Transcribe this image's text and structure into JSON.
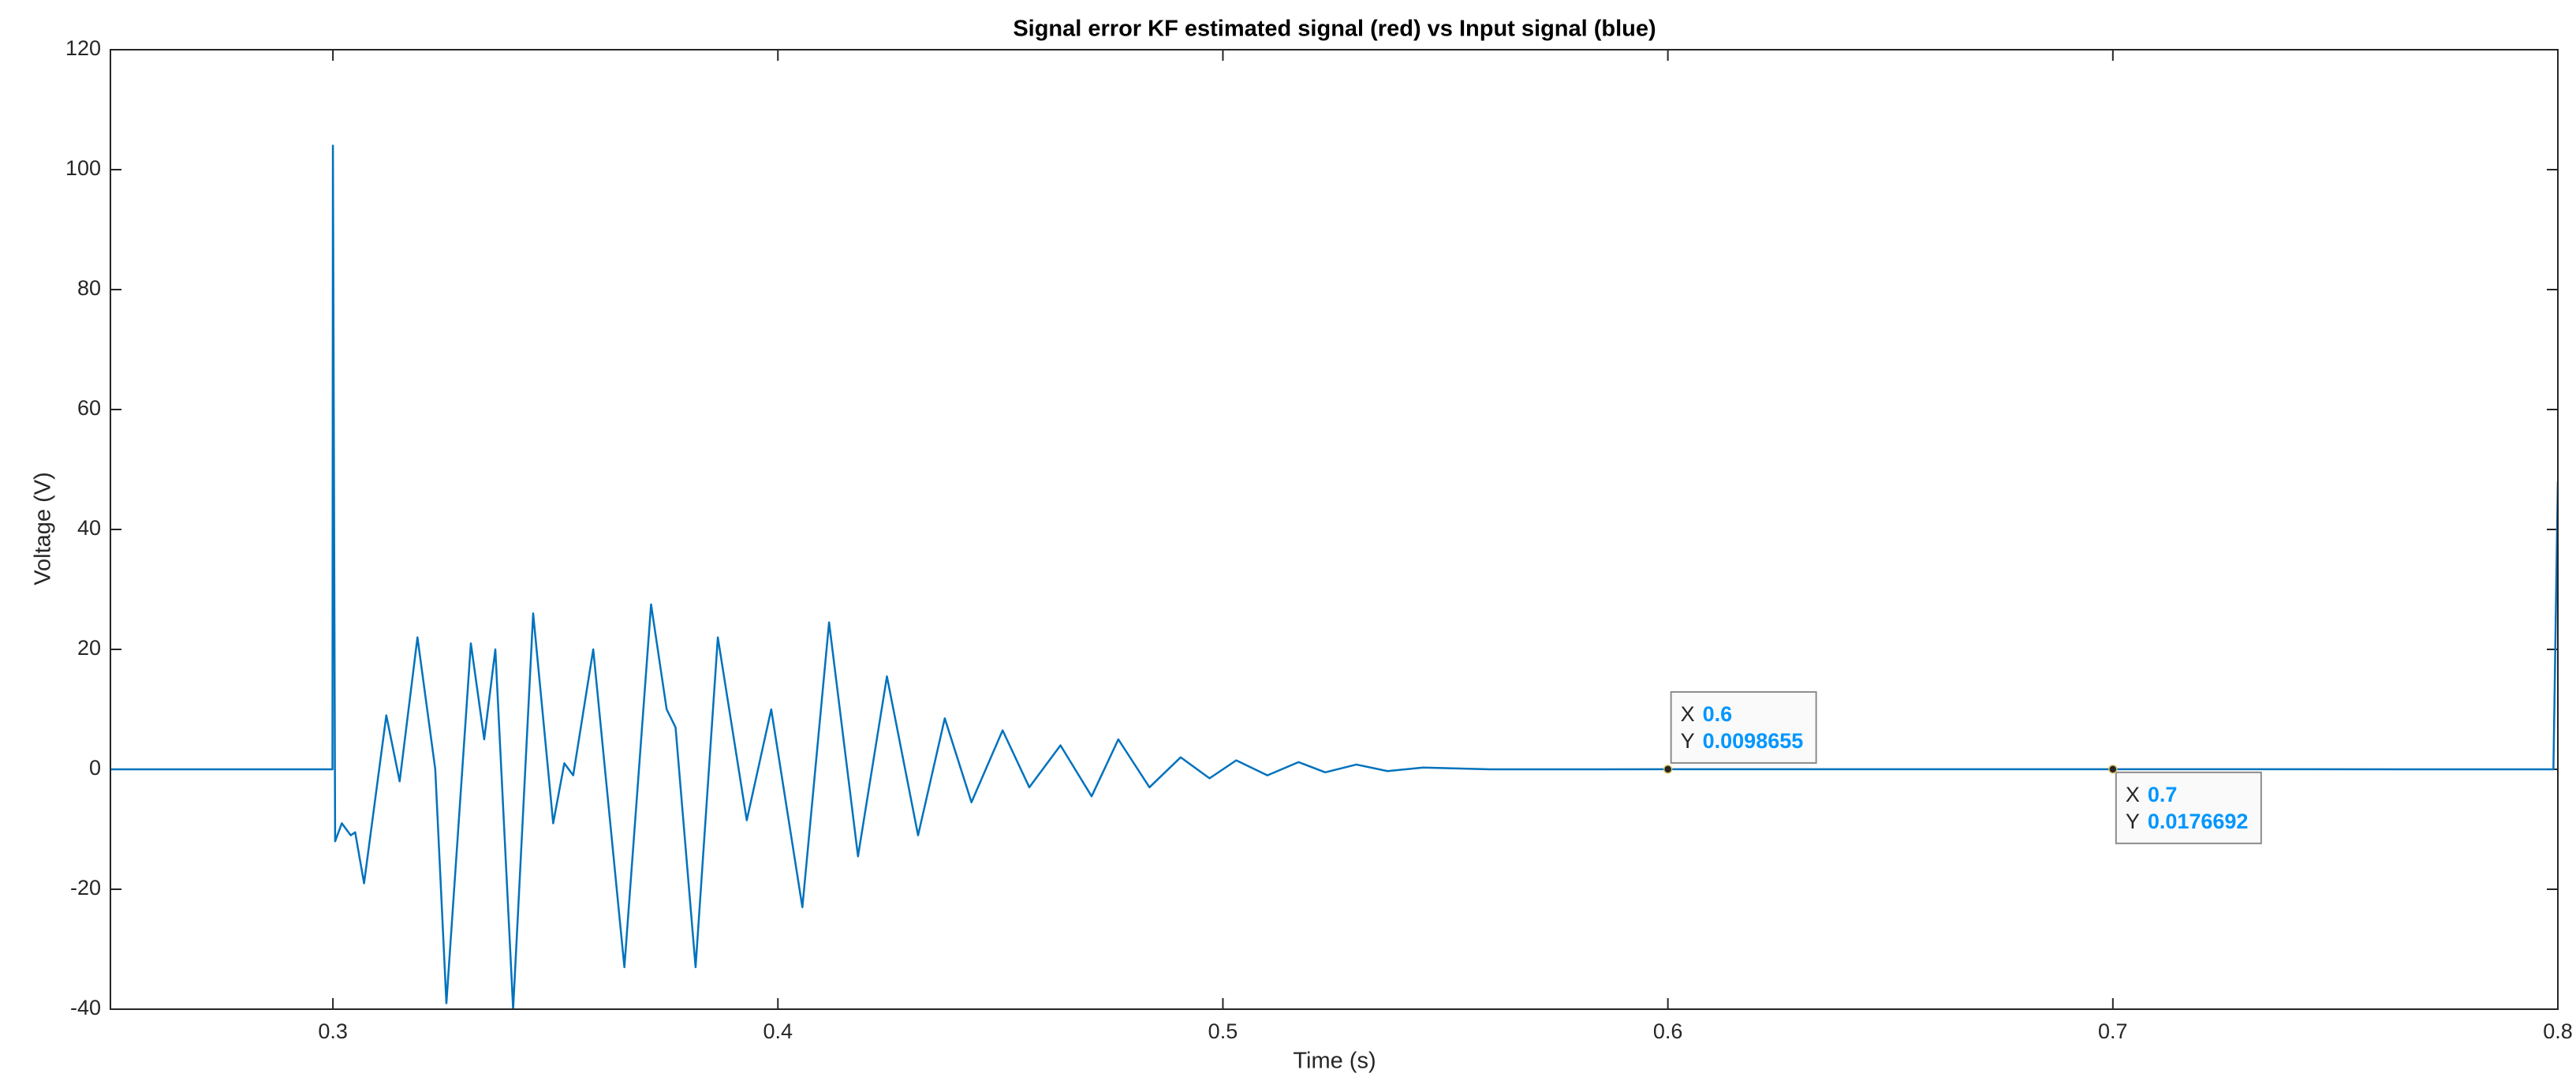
{
  "chart_data": {
    "type": "line",
    "title": "Signal error KF estimated signal (red) vs Input signal (blue)",
    "xlabel": "Time (s)",
    "ylabel": "Voltage (V)",
    "x": [
      0.25,
      0.2999,
      0.3,
      0.3005,
      0.302,
      0.304,
      0.305,
      0.307,
      0.312,
      0.315,
      0.319,
      0.323,
      0.3255,
      0.331,
      0.334,
      0.3365,
      0.3405,
      0.345,
      0.3495,
      0.352,
      0.354,
      0.3585,
      0.3655,
      0.3715,
      0.375,
      0.377,
      0.3815,
      0.3865,
      0.393,
      0.3985,
      0.4055,
      0.4115,
      0.418,
      0.4245,
      0.4315,
      0.4375,
      0.4435,
      0.4505,
      0.4565,
      0.4635,
      0.4705,
      0.4765,
      0.4835,
      0.4905,
      0.497,
      0.503,
      0.51,
      0.517,
      0.523,
      0.53,
      0.537,
      0.545,
      0.56,
      0.6,
      0.7,
      0.799,
      0.8
    ],
    "series": [
      {
        "color": "#0072bd",
        "values": [
          0,
          0,
          104,
          -12,
          -9,
          -11,
          -10.5,
          -19,
          9,
          -2,
          22,
          0,
          -39,
          21,
          5,
          20,
          -40,
          26,
          -9,
          1,
          -1,
          20,
          -33,
          27.5,
          10,
          7,
          -33,
          22,
          -8.5,
          10,
          -23,
          24.5,
          -14.5,
          15.5,
          -11,
          8.5,
          -5.5,
          6.5,
          -3,
          4,
          -4.5,
          5,
          -3,
          2,
          -1.5,
          1.5,
          -1,
          1.2,
          -0.5,
          0.8,
          -0.3,
          0.3,
          0,
          0.0098655,
          0.0176692,
          0,
          48
        ]
      }
    ],
    "xlim": [
      0.25,
      0.8
    ],
    "xticks": [
      0.3,
      0.4,
      0.5,
      0.6,
      0.7,
      0.8
    ],
    "ylim": [
      -40,
      120
    ],
    "yticks": [
      -40,
      -20,
      0,
      20,
      40,
      60,
      80,
      100,
      120
    ],
    "grid": false,
    "datatip_labels": [
      "X",
      "Y"
    ],
    "datatips": [
      {
        "x": 0.6,
        "y": 0.0098655
      },
      {
        "x": 0.7,
        "y": 0.0176692
      }
    ]
  }
}
